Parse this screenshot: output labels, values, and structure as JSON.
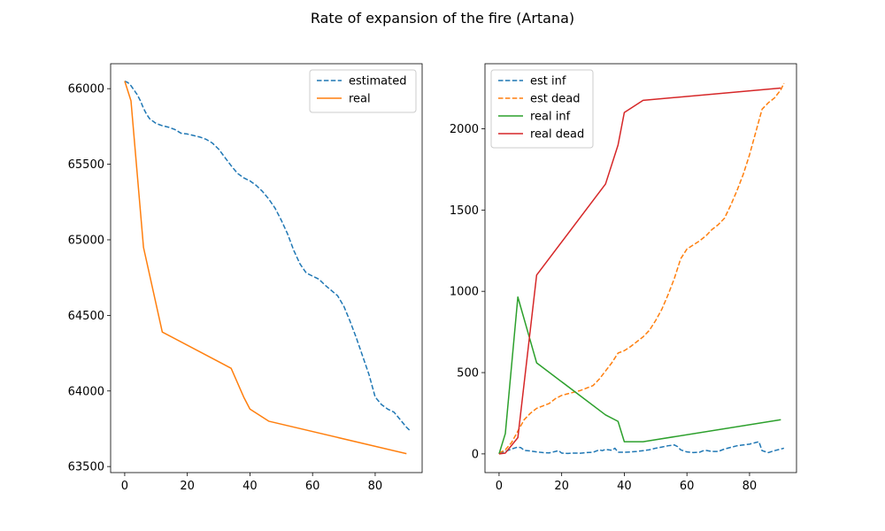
{
  "figure": {
    "title": "Rate of expansion of the fire (Artana)"
  },
  "chart_data": [
    {
      "type": "line",
      "xlim": [
        -4.5,
        95
      ],
      "ylim": [
        63460,
        66165
      ],
      "xticks": [
        0,
        20,
        40,
        60,
        80
      ],
      "yticks": [
        63500,
        64000,
        64500,
        65000,
        65500,
        66000
      ],
      "legend_position": "top-right",
      "series": [
        {
          "name": "estimated",
          "color": "#1f77b4",
          "style": "dashed",
          "x": [
            0,
            1,
            2,
            3,
            4,
            5,
            6,
            7,
            8,
            10,
            12,
            14,
            16,
            18,
            20,
            22,
            24,
            26,
            28,
            30,
            32,
            34,
            36,
            38,
            40,
            42,
            44,
            46,
            48,
            50,
            52,
            54,
            56,
            58,
            60,
            62,
            64,
            66,
            68,
            70,
            72,
            74,
            76,
            78,
            80,
            82,
            84,
            86,
            88,
            90,
            91
          ],
          "y": [
            66050,
            66040,
            66020,
            65990,
            65960,
            65920,
            65870,
            65830,
            65800,
            65770,
            65755,
            65745,
            65730,
            65705,
            65700,
            65690,
            65680,
            65665,
            65640,
            65600,
            65545,
            65490,
            65440,
            65410,
            65390,
            65360,
            65320,
            65270,
            65210,
            65130,
            65040,
            64930,
            64840,
            64780,
            64760,
            64740,
            64700,
            64665,
            64630,
            64560,
            64460,
            64350,
            64230,
            64110,
            63960,
            63910,
            63880,
            63860,
            63810,
            63760,
            63740
          ]
        },
        {
          "name": "real",
          "color": "#ff7f0e",
          "style": "solid",
          "x": [
            0,
            2,
            6,
            12,
            34,
            38,
            40,
            46,
            90
          ],
          "y": [
            66050,
            65920,
            64950,
            64390,
            64150,
            63960,
            63880,
            63800,
            63585
          ]
        }
      ]
    },
    {
      "type": "line",
      "xlim": [
        -4.5,
        95
      ],
      "ylim": [
        -115,
        2400
      ],
      "xticks": [
        0,
        20,
        40,
        60,
        80
      ],
      "yticks": [
        0,
        500,
        1000,
        1500,
        2000
      ],
      "legend_position": "top-left",
      "series": [
        {
          "name": "est inf",
          "color": "#1f77b4",
          "style": "dashed",
          "x": [
            0,
            2,
            4,
            6,
            7,
            8,
            10,
            12,
            14,
            16,
            18,
            19,
            20,
            22,
            24,
            26,
            28,
            30,
            32,
            33,
            34,
            36,
            37,
            38,
            40,
            42,
            44,
            46,
            48,
            50,
            52,
            54,
            56,
            57,
            58,
            60,
            62,
            64,
            65,
            66,
            68,
            70,
            72,
            74,
            76,
            78,
            80,
            82,
            83,
            84,
            86,
            88,
            90,
            91
          ],
          "y": [
            5,
            15,
            30,
            42,
            38,
            22,
            18,
            12,
            8,
            6,
            15,
            20,
            5,
            3,
            5,
            4,
            8,
            10,
            25,
            20,
            28,
            22,
            35,
            10,
            10,
            12,
            15,
            20,
            25,
            35,
            42,
            50,
            55,
            45,
            25,
            12,
            8,
            10,
            18,
            22,
            15,
            15,
            30,
            40,
            50,
            55,
            60,
            70,
            75,
            20,
            8,
            20,
            30,
            35
          ]
        },
        {
          "name": "est dead",
          "color": "#ff7f0e",
          "style": "dashed",
          "x": [
            0,
            2,
            4,
            6,
            8,
            10,
            12,
            14,
            16,
            18,
            20,
            22,
            24,
            26,
            28,
            30,
            32,
            34,
            36,
            38,
            40,
            42,
            44,
            46,
            48,
            50,
            52,
            54,
            56,
            58,
            60,
            62,
            64,
            66,
            68,
            70,
            72,
            74,
            76,
            78,
            80,
            82,
            84,
            86,
            88,
            90,
            91
          ],
          "y": [
            5,
            25,
            70,
            140,
            210,
            250,
            280,
            295,
            310,
            340,
            360,
            370,
            380,
            390,
            405,
            420,
            460,
            510,
            560,
            620,
            635,
            660,
            690,
            720,
            760,
            820,
            890,
            980,
            1080,
            1200,
            1260,
            1285,
            1310,
            1340,
            1380,
            1410,
            1450,
            1530,
            1620,
            1720,
            1840,
            1980,
            2120,
            2160,
            2190,
            2240,
            2280
          ]
        },
        {
          "name": "real inf",
          "color": "#2ca02c",
          "style": "solid",
          "x": [
            0,
            2,
            6,
            12,
            34,
            38,
            40,
            46,
            90
          ],
          "y": [
            0,
            125,
            965,
            560,
            240,
            200,
            75,
            75,
            210
          ]
        },
        {
          "name": "real dead",
          "color": "#d62728",
          "style": "solid",
          "x": [
            0,
            2,
            6,
            12,
            34,
            38,
            40,
            46,
            90
          ],
          "y": [
            0,
            5,
            100,
            1100,
            1660,
            1900,
            2100,
            2175,
            2250
          ]
        }
      ]
    }
  ]
}
